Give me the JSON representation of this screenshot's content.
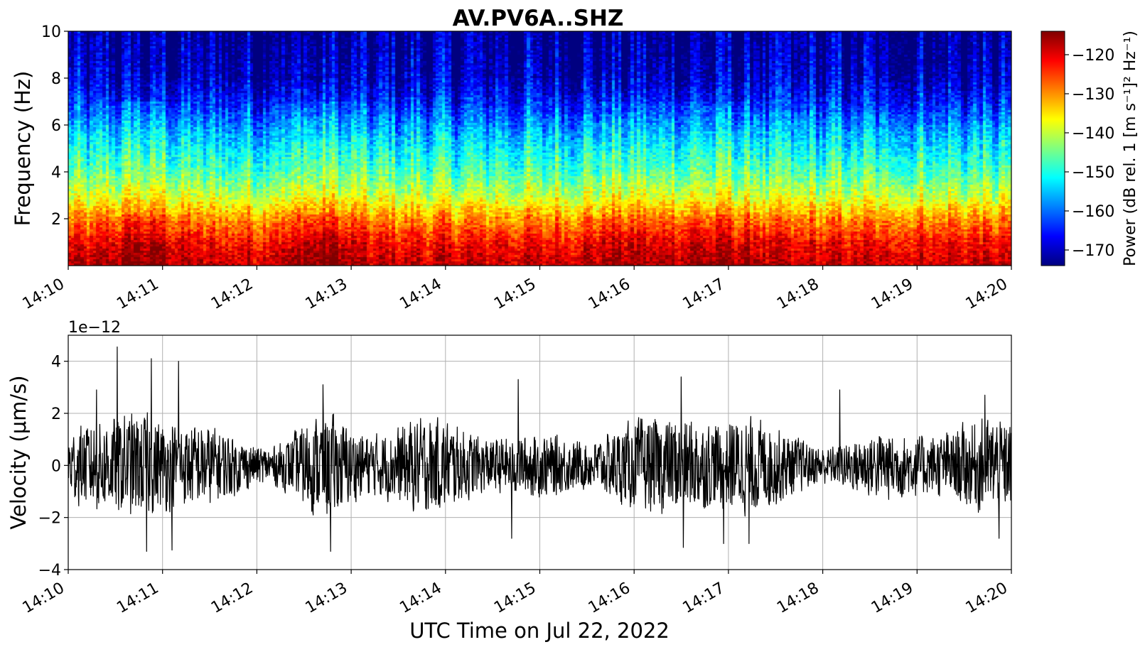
{
  "chart_data": [
    {
      "type": "heatmap",
      "title": "AV.PV6A..SHZ",
      "xlabel": "",
      "ylabel": "Frequency (Hz)",
      "xlim": [
        "14:10",
        "14:20"
      ],
      "ylim": [
        0,
        10
      ],
      "x_ticks": [
        "14:10",
        "14:11",
        "14:12",
        "14:13",
        "14:14",
        "14:15",
        "14:16",
        "14:17",
        "14:18",
        "14:19",
        "14:20"
      ],
      "y_ticks": [
        2,
        4,
        6,
        8,
        10
      ],
      "colormap": "jet",
      "colorbar": {
        "label": "Power (dB rel. 1 [m s⁻¹]² Hz⁻¹)",
        "range": [
          -174,
          -114
        ],
        "ticks": [
          -120,
          -130,
          -140,
          -150,
          -160,
          -170
        ]
      },
      "power_profile": {
        "frequency_hz": [
          0,
          1,
          2,
          3,
          4,
          5,
          6,
          7,
          8,
          9,
          10
        ],
        "power_db": [
          -118,
          -122,
          -130,
          -140,
          -147,
          -152,
          -158,
          -165,
          -170,
          -172,
          -173
        ]
      },
      "bursts": [
        {
          "minute": 0.8,
          "strength": 1.0
        },
        {
          "minute": 2.7,
          "strength": 1.0
        },
        {
          "minute": 5.85,
          "strength": 0.6
        },
        {
          "minute": 6.6,
          "strength": 0.5
        },
        {
          "minute": 7.1,
          "strength": 0.5
        }
      ]
    },
    {
      "type": "line",
      "title": "",
      "xlabel": "UTC Time on Jul 22, 2022",
      "ylabel": "Velocity (μm/s)",
      "y_offset_label": "1e−12",
      "xlim": [
        "14:10",
        "14:20"
      ],
      "ylim": [
        -4,
        5
      ],
      "x_ticks": [
        "14:10",
        "14:11",
        "14:12",
        "14:13",
        "14:14",
        "14:15",
        "14:16",
        "14:17",
        "14:18",
        "14:19",
        "14:20"
      ],
      "y_ticks": [
        -4,
        -2,
        0,
        2,
        4
      ],
      "grid": true,
      "line_color": "#000000",
      "peaks": [
        {
          "minute": 0.3,
          "value": 2.9
        },
        {
          "minute": 0.52,
          "value": 4.55
        },
        {
          "minute": 0.88,
          "value": 4.1
        },
        {
          "minute": 1.17,
          "value": 4.0
        },
        {
          "minute": 0.83,
          "value": -3.3
        },
        {
          "minute": 1.1,
          "value": -3.25
        },
        {
          "minute": 2.7,
          "value": 3.1
        },
        {
          "minute": 2.78,
          "value": -3.3
        },
        {
          "minute": 4.77,
          "value": 3.3
        },
        {
          "minute": 4.7,
          "value": -2.8
        },
        {
          "minute": 6.5,
          "value": 3.4
        },
        {
          "minute": 6.52,
          "value": -3.15
        },
        {
          "minute": 6.95,
          "value": -3.0
        },
        {
          "minute": 7.22,
          "value": -3.0
        },
        {
          "minute": 8.18,
          "value": 2.9
        },
        {
          "minute": 9.72,
          "value": 2.7
        },
        {
          "minute": 9.87,
          "value": -2.8
        }
      ]
    }
  ]
}
